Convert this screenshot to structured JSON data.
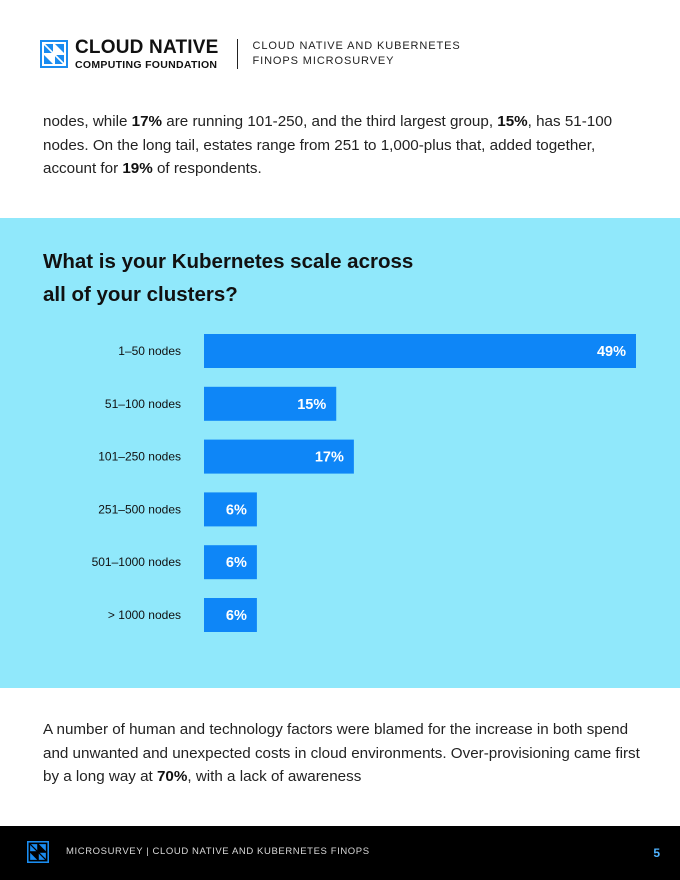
{
  "header": {
    "logo_line1": "CLOUD NATIVE",
    "logo_line2": "COMPUTING FOUNDATION",
    "subtitle_line1": "CLOUD NATIVE AND KUBERNETES",
    "subtitle_line2": "FINOPS MICROSURVEY",
    "logo_icon": "cncf-logo-icon"
  },
  "intro": {
    "segments": [
      {
        "text": "nodes, while ",
        "bold": false
      },
      {
        "text": "17%",
        "bold": true
      },
      {
        "text": " are running 101-250, and the third largest group, ",
        "bold": false
      },
      {
        "text": "15%",
        "bold": true
      },
      {
        "text": ", has 51-100 nodes. On the long tail, estates range from 251 to 1,000-plus that, added together, account for ",
        "bold": false
      },
      {
        "text": "19%",
        "bold": true
      },
      {
        "text": " of respondents.",
        "bold": false
      }
    ]
  },
  "chart_data": {
    "type": "bar",
    "orientation": "horizontal",
    "title": "What is your Kubernetes scale across all of your clusters?",
    "categories": [
      "1–50 nodes",
      "51–100 nodes",
      "101–250 nodes",
      "251–500 nodes",
      "501–1000 nodes",
      "> 1000 nodes"
    ],
    "values": [
      49,
      15,
      17,
      6,
      6,
      6
    ],
    "value_labels": [
      "49%",
      "15%",
      "17%",
      "6%",
      "6%",
      "6%"
    ],
    "unit": "%",
    "xlim": [
      0,
      49
    ],
    "grid": false,
    "legend": "none",
    "colors": {
      "bar": "#0e86f7",
      "background": "#90e8fb",
      "value_text": "#ffffff"
    }
  },
  "outro": {
    "segments": [
      {
        "text": "A number of human and technology factors were blamed for the increase in both spend and unwanted and unexpected costs in cloud environments. Over-provisioning came first by a long way at ",
        "bold": false
      },
      {
        "text": "70%",
        "bold": true
      },
      {
        "text": ", with a lack of awareness",
        "bold": false
      }
    ]
  },
  "footer": {
    "text": "MICROSURVEY | CLOUD NATIVE AND KUBERNETES FINOPS",
    "page_number": "5",
    "logo_icon": "cncf-logo-icon"
  }
}
